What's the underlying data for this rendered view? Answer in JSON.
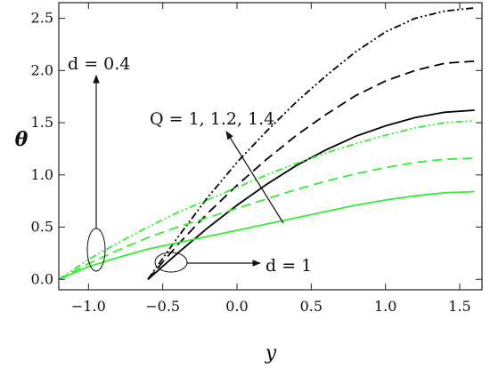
{
  "chart_data": {
    "type": "line",
    "xlabel": "y",
    "ylabel": "θ",
    "xlim": [
      -1.2,
      1.65
    ],
    "ylim": [
      -0.1,
      2.65
    ],
    "xticks": [
      -1.0,
      -0.5,
      0.0,
      0.5,
      1.0,
      1.5
    ],
    "xtick_labels": [
      "−1.0",
      "−0.5",
      "0.0",
      "0.5",
      "1.0",
      "1.5"
    ],
    "yticks": [
      0.0,
      0.5,
      1.0,
      1.5,
      2.0,
      2.5
    ],
    "ytick_labels": [
      "0.0",
      "0.5",
      "1.0",
      "1.5",
      "2.0",
      "2.5"
    ],
    "grid": false,
    "series": [
      {
        "color": "#000000",
        "dash": "solid",
        "x": [
          -0.6,
          -0.4,
          -0.2,
          0.0,
          0.2,
          0.4,
          0.6,
          0.8,
          1.0,
          1.2,
          1.4,
          1.6
        ],
        "y": [
          0.0,
          0.25,
          0.49,
          0.71,
          0.91,
          1.09,
          1.24,
          1.37,
          1.47,
          1.55,
          1.6,
          1.62
        ]
      },
      {
        "color": "#000000",
        "dash": "dashed",
        "x": [
          -0.6,
          -0.4,
          -0.2,
          0.0,
          0.2,
          0.4,
          0.6,
          0.8,
          1.0,
          1.2,
          1.4,
          1.6
        ],
        "y": [
          0.0,
          0.33,
          0.63,
          0.9,
          1.15,
          1.38,
          1.58,
          1.76,
          1.9,
          2.0,
          2.07,
          2.09
        ]
      },
      {
        "color": "#000000",
        "dash": "dashdotdot",
        "x": [
          -0.6,
          -0.4,
          -0.2,
          0.0,
          0.2,
          0.4,
          0.6,
          0.8,
          1.0,
          1.2,
          1.4,
          1.6
        ],
        "y": [
          0.0,
          0.4,
          0.78,
          1.12,
          1.42,
          1.7,
          1.95,
          2.18,
          2.37,
          2.5,
          2.57,
          2.6
        ]
      },
      {
        "color": "#33ee33",
        "dash": "solid",
        "x": [
          -1.2,
          -1.0,
          -0.8,
          -0.6,
          -0.4,
          -0.2,
          0.0,
          0.2,
          0.4,
          0.6,
          0.8,
          1.0,
          1.2,
          1.4,
          1.6
        ],
        "y": [
          0.0,
          0.12,
          0.21,
          0.29,
          0.35,
          0.41,
          0.47,
          0.53,
          0.59,
          0.65,
          0.71,
          0.76,
          0.8,
          0.83,
          0.84
        ]
      },
      {
        "color": "#33ee33",
        "dash": "dashed",
        "x": [
          -1.2,
          -1.0,
          -0.8,
          -0.6,
          -0.4,
          -0.2,
          0.0,
          0.2,
          0.4,
          0.6,
          0.8,
          1.0,
          1.2,
          1.4,
          1.6
        ],
        "y": [
          0.0,
          0.15,
          0.28,
          0.4,
          0.5,
          0.59,
          0.68,
          0.77,
          0.86,
          0.94,
          1.01,
          1.07,
          1.12,
          1.15,
          1.16
        ]
      },
      {
        "color": "#33ee33",
        "dash": "dashdotdot",
        "x": [
          -1.2,
          -1.0,
          -0.8,
          -0.6,
          -0.4,
          -0.2,
          0.0,
          0.2,
          0.4,
          0.6,
          0.8,
          1.0,
          1.2,
          1.4,
          1.6
        ],
        "y": [
          0.0,
          0.19,
          0.35,
          0.5,
          0.64,
          0.76,
          0.88,
          1.0,
          1.11,
          1.21,
          1.3,
          1.38,
          1.45,
          1.5,
          1.52
        ]
      }
    ],
    "annotations": [
      {
        "text": "d = 0.4"
      },
      {
        "text": "Q = 1, 1.2, 1.4"
      },
      {
        "text": "d = 1"
      }
    ]
  }
}
